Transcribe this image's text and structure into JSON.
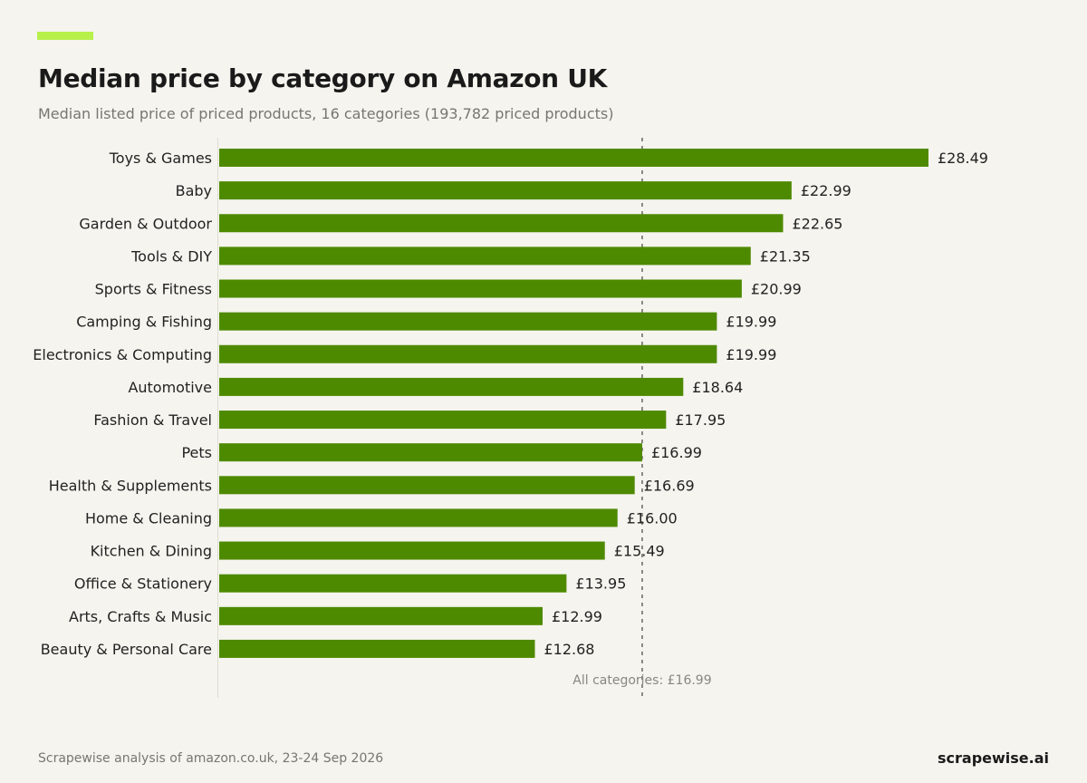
{
  "title": "Median price by category on Amazon UK",
  "subtitle": "Median listed price of priced products, 16 categories (193,782 priced products)",
  "footer": {
    "source": "Scrapewise analysis of amazon.co.uk, 23-24 Sep 2026",
    "brand": "scrapewise.ai"
  },
  "colors": {
    "accent": "#b8f04a",
    "bar": "#4e8a00",
    "background": "#f5f4ee"
  },
  "chart_data": {
    "type": "bar",
    "orientation": "horizontal",
    "categories": [
      "Toys & Games",
      "Baby",
      "Garden & Outdoor",
      "Tools & DIY",
      "Sports & Fitness",
      "Camping & Fishing",
      "Electronics & Computing",
      "Automotive",
      "Fashion & Travel",
      "Pets",
      "Health & Supplements",
      "Home & Cleaning",
      "Kitchen & Dining",
      "Office & Stationery",
      "Arts, Crafts & Music",
      "Beauty & Personal Care"
    ],
    "values": [
      28.49,
      22.99,
      22.65,
      21.35,
      20.99,
      19.99,
      19.99,
      18.64,
      17.95,
      16.99,
      16.69,
      16.0,
      15.49,
      13.95,
      12.99,
      12.68
    ],
    "value_labels": [
      "£28.49",
      "£22.99",
      "£22.65",
      "£21.35",
      "£20.99",
      "£19.99",
      "£19.99",
      "£18.64",
      "£17.95",
      "£16.99",
      "£16.69",
      "£16.00",
      "£15.49",
      "£13.95",
      "£12.99",
      "£12.68"
    ],
    "xlim": [
      0,
      28.49
    ],
    "reference_line": {
      "value": 16.99,
      "label": "All categories: £16.99"
    },
    "grid": false,
    "legend": "none"
  }
}
